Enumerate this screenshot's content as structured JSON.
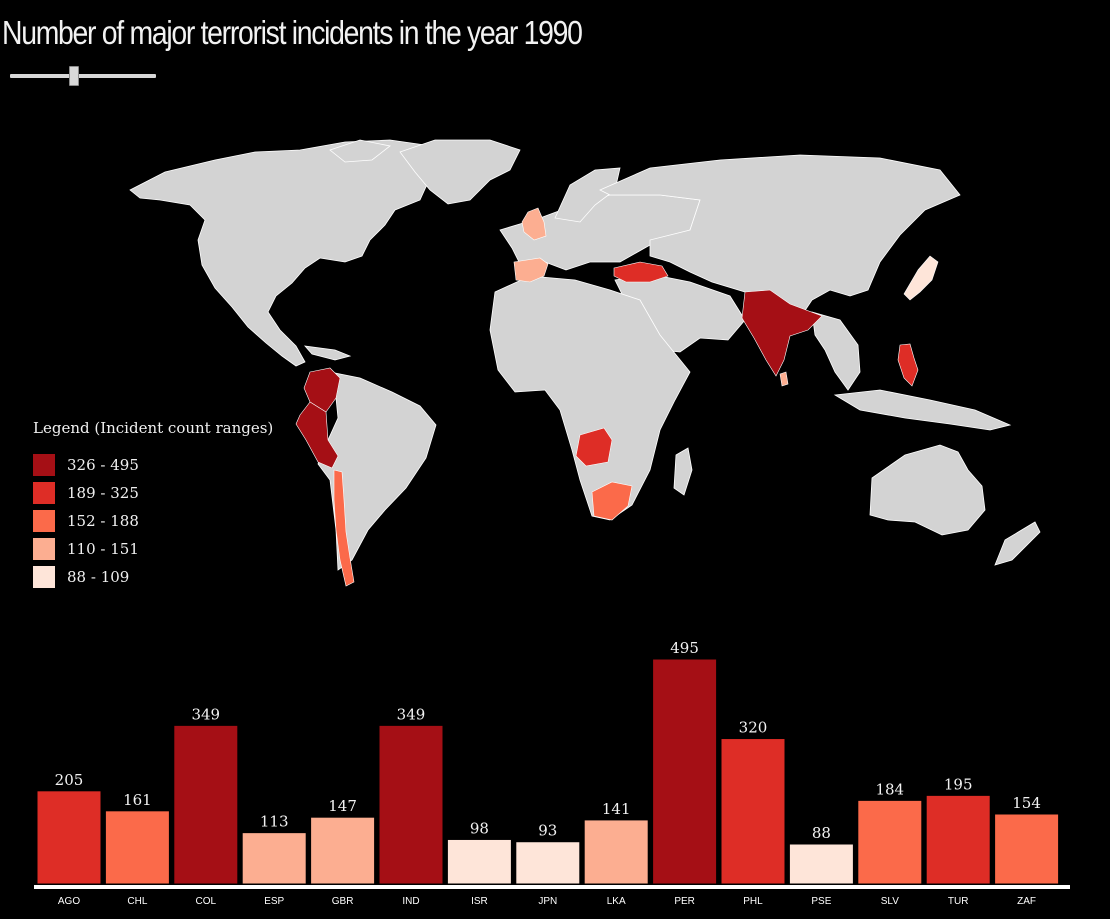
{
  "title": "Number of major terrorist incidents in the year 1990",
  "year_slider": {
    "value_fraction": 0.44
  },
  "map": {
    "land_color": "#d3d3d3",
    "border_color": "#ffffff",
    "water_color": "#000000"
  },
  "legend": {
    "title": "Legend (Incident count ranges)",
    "items": [
      {
        "label": "326 - 495",
        "color": "#a50f15"
      },
      {
        "label": "189 - 325",
        "color": "#de2d26"
      },
      {
        "label": "152 - 188",
        "color": "#fb6a4a"
      },
      {
        "label": "110 - 151",
        "color": "#fcae91"
      },
      {
        "label": "88 - 109",
        "color": "#fee5d9"
      }
    ]
  },
  "chart_data": {
    "type": "bar",
    "title": "Number of major terrorist incidents in the year 1990",
    "categories": [
      "AGO",
      "CHL",
      "COL",
      "ESP",
      "GBR",
      "IND",
      "ISR",
      "JPN",
      "LKA",
      "PER",
      "PHL",
      "PSE",
      "SLV",
      "TUR",
      "ZAF"
    ],
    "values": [
      205,
      161,
      349,
      113,
      147,
      349,
      98,
      93,
      141,
      495,
      320,
      88,
      184,
      195,
      154
    ],
    "ylim": [
      0,
      495
    ],
    "grid": false
  }
}
